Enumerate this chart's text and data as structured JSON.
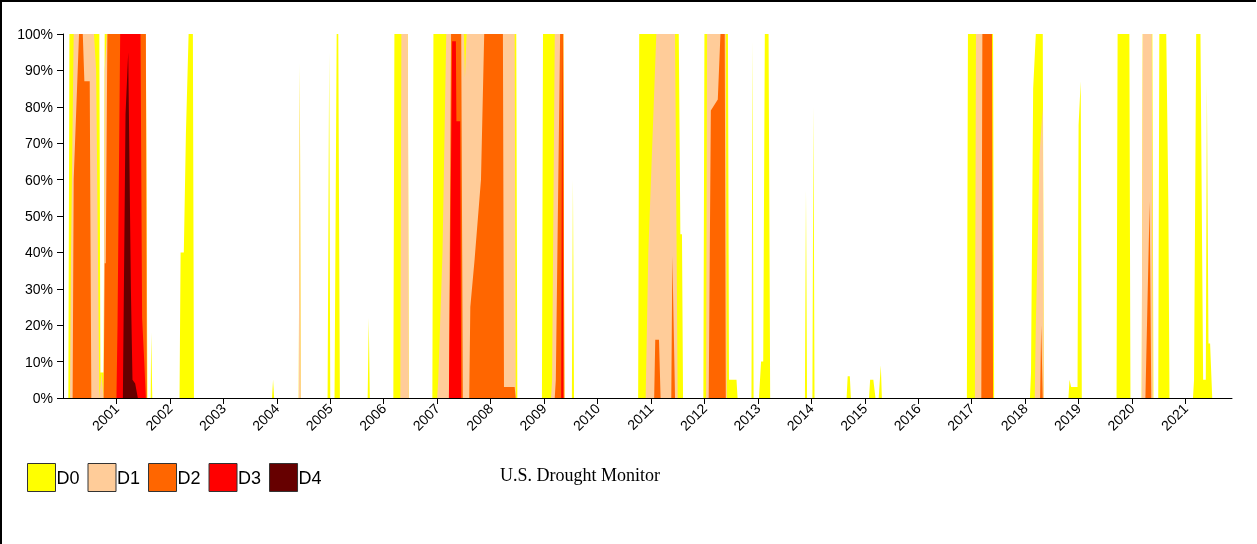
{
  "chart_data": {
    "type": "area",
    "xlim": [
      2000,
      2021.87
    ],
    "xticks": [
      2001,
      2002,
      2003,
      2004,
      2005,
      2006,
      2007,
      2008,
      2009,
      2010,
      2011,
      2012,
      2013,
      2014,
      2015,
      2016,
      2017,
      2018,
      2019,
      2020,
      2021
    ],
    "ylim": [
      0,
      100
    ],
    "yticks": [
      {
        "value": 0,
        "label": "0%"
      },
      {
        "value": 10,
        "label": "10%"
      },
      {
        "value": 20,
        "label": "20%"
      },
      {
        "value": 30,
        "label": "30%"
      },
      {
        "value": 40,
        "label": "40%"
      },
      {
        "value": 50,
        "label": "50%"
      },
      {
        "value": 60,
        "label": "60%"
      },
      {
        "value": 70,
        "label": "70%"
      },
      {
        "value": 80,
        "label": "80%"
      },
      {
        "value": 90,
        "label": "90%"
      },
      {
        "value": 100,
        "label": "100%"
      }
    ],
    "legend": "bottom left",
    "annotations": [
      "U.S. Drought Monitor"
    ],
    "series": [
      {
        "name": "D0",
        "color": "#ffff00",
        "x": [
          2000.1,
          2000.12,
          2000.68,
          2000.7,
          2000.76,
          2000.78,
          2001.55,
          2001.58,
          2001.64,
          2001.65,
          2001.67,
          2002.18,
          2002.2,
          2002.26,
          2002.3,
          2002.35,
          2002.43,
          2002.45,
          2003.91,
          2003.93,
          2003.95,
          2004.41,
          2004.43,
          2004.45,
          2004.95,
          2004.98,
          2005.0,
          2005.08,
          2005.1,
          2005.12,
          2005.15,
          2005.18,
          2005.7,
          2005.72,
          2005.74,
          2006.18,
          2006.2,
          2006.45,
          2006.47,
          2006.91,
          2006.93,
          2008.48,
          2008.5,
          2008.96,
          2008.98,
          2009.36,
          2009.38,
          2009.52,
          2009.54,
          2009.56,
          2010.76,
          2010.78,
          2011.52,
          2011.55,
          2011.58,
          2011.6,
          2011.98,
          2012.0,
          2012.44,
          2012.46,
          2012.6,
          2012.62,
          2012.88,
          2012.9,
          2012.92,
          2013.02,
          2013.06,
          2013.1,
          2013.13,
          2013.2,
          2013.23,
          2013.88,
          2013.9,
          2013.92,
          2014.02,
          2014.04,
          2014.06,
          2014.66,
          2014.68,
          2014.72,
          2014.74,
          2015.08,
          2015.1,
          2015.16,
          2015.2,
          2015.26,
          2015.3,
          2015.32,
          2016.91,
          2016.93,
          2017.4,
          2017.42,
          2018.09,
          2018.11,
          2018.15,
          2018.2,
          2018.33,
          2018.35,
          2018.81,
          2018.83,
          2018.86,
          2018.98,
          2019.0,
          2019.04,
          2019.06,
          2019.71,
          2019.73,
          2019.95,
          2019.97,
          2020.18,
          2020.2,
          2020.38,
          2020.4,
          2020.49,
          2020.51,
          2020.64,
          2020.68,
          2020.7,
          2021.14,
          2021.16,
          2021.2,
          2021.28,
          2021.33,
          2021.38,
          2021.4,
          2021.43,
          2021.46,
          2021.5
        ],
        "values": [
          0,
          100,
          100,
          7,
          7,
          100,
          100,
          0,
          0,
          18,
          0,
          0,
          40,
          40,
          73,
          100,
          100,
          0,
          0,
          5,
          0,
          0,
          92,
          0,
          0,
          95,
          0,
          0,
          50,
          100,
          100,
          0,
          0,
          22,
          0,
          0,
          100,
          100,
          0,
          0,
          100,
          100,
          0,
          0,
          100,
          100,
          0,
          0,
          60,
          0,
          0,
          100,
          100,
          45,
          45,
          0,
          0,
          100,
          100,
          5,
          5,
          0,
          0,
          98,
          0,
          0,
          10,
          10,
          100,
          100,
          0,
          0,
          57,
          0,
          0,
          80,
          0,
          0,
          6,
          6,
          0,
          0,
          5,
          5,
          0,
          0,
          9,
          0,
          0,
          100,
          100,
          0,
          0,
          7,
          85,
          100,
          100,
          0,
          0,
          5,
          3,
          3,
          75,
          87,
          0,
          0,
          100,
          100,
          0,
          0,
          100,
          100,
          0,
          0,
          100,
          100,
          52,
          0,
          0,
          5,
          100,
          100,
          5,
          5,
          86,
          15,
          15,
          0
        ]
      },
      {
        "name": "D1",
        "color": "#ffcc99",
        "x": [
          2000.13,
          2000.15,
          2000.2,
          2000.58,
          2000.62,
          2000.68,
          2000.72,
          2000.76,
          2000.78,
          2000.82,
          2001.55,
          2001.57,
          2004.41,
          2004.43,
          2004.45,
          2006.31,
          2006.33,
          2006.45,
          2006.47,
          2007.0,
          2007.02,
          2007.1,
          2007.17,
          2007.5,
          2007.52,
          2007.55,
          2008.45,
          2008.47,
          2009.13,
          2009.15,
          2009.2,
          2009.35,
          2009.37,
          2010.9,
          2010.95,
          2011.0,
          2011.1,
          2011.45,
          2011.5,
          2012.03,
          2012.05,
          2012.4,
          2012.42,
          2017.06,
          2017.08,
          2017.37,
          2017.39,
          2018.18,
          2018.2,
          2018.27,
          2018.33,
          2018.35,
          2020.18,
          2020.2,
          2020.37,
          2020.39
        ],
        "values": [
          0,
          40,
          100,
          100,
          90,
          0,
          7,
          0,
          90,
          100,
          100,
          0,
          0,
          90,
          0,
          0,
          100,
          100,
          0,
          0,
          5,
          40,
          100,
          100,
          88,
          100,
          100,
          0,
          0,
          5,
          100,
          100,
          0,
          0,
          40,
          60,
          100,
          100,
          0,
          0,
          100,
          100,
          0,
          0,
          100,
          100,
          0,
          0,
          20,
          67,
          80,
          0,
          0,
          100,
          100,
          0
        ]
      },
      {
        "name": "D2",
        "color": "#ff6600",
        "x": [
          2000.18,
          2000.2,
          2000.3,
          2000.37,
          2000.4,
          2000.5,
          2000.53,
          2000.76,
          2000.78,
          2000.8,
          2000.83,
          2001.55,
          2001.57,
          2007.22,
          2007.26,
          2007.45,
          2007.48,
          2007.6,
          2007.62,
          2007.7,
          2007.82,
          2007.88,
          2008.23,
          2008.25,
          2008.45,
          2008.47,
          2009.2,
          2009.22,
          2009.3,
          2009.36,
          2009.38,
          2011.06,
          2011.08,
          2011.15,
          2011.18,
          2011.38,
          2011.4,
          2011.45,
          2012.08,
          2012.12,
          2012.25,
          2012.3,
          2012.38,
          2012.4,
          2017.18,
          2017.2,
          2017.38,
          2017.4,
          2018.28,
          2018.3,
          2018.33,
          2020.25,
          2020.33,
          2020.36
        ],
        "values": [
          0,
          60,
          100,
          100,
          87,
          87,
          0,
          0,
          37,
          37,
          100,
          100,
          0,
          0,
          100,
          100,
          0,
          0,
          25,
          38,
          60,
          100,
          100,
          3,
          3,
          0,
          0,
          5,
          100,
          100,
          0,
          0,
          16,
          16,
          0,
          0,
          39,
          0,
          0,
          79,
          82,
          100,
          100,
          0,
          0,
          100,
          100,
          0,
          0,
          20,
          0,
          0,
          54,
          0
        ]
      },
      {
        "name": "D3",
        "color": "#ff0000",
        "x": [
          2001.0,
          2001.02,
          2001.07,
          2001.45,
          2001.48,
          2001.52,
          2001.55,
          2007.22,
          2007.28,
          2007.35,
          2007.36,
          2007.43,
          2007.45,
          2009.32,
          2009.34,
          2009.36
        ],
        "values": [
          0,
          20,
          100,
          100,
          22,
          10,
          0,
          0,
          98,
          98,
          76,
          76,
          0,
          0,
          100,
          0
        ]
      },
      {
        "name": "D4",
        "color": "#660000",
        "x": [
          2001.12,
          2001.17,
          2001.22,
          2001.27,
          2001.3,
          2001.35,
          2001.4
        ],
        "values": [
          0,
          78,
          95,
          30,
          5,
          4,
          0
        ]
      }
    ]
  }
}
